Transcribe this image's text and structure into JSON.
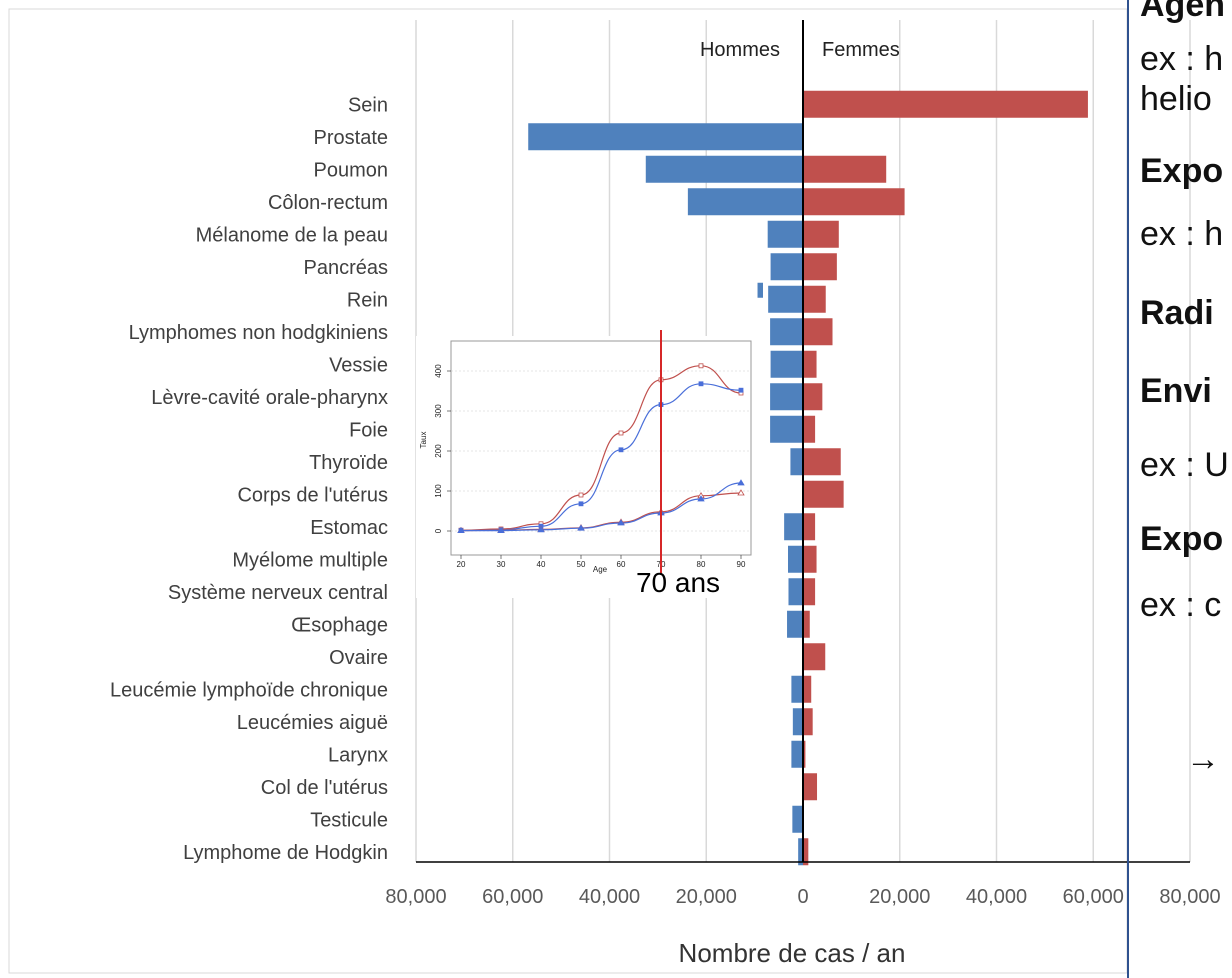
{
  "chart_data": {
    "type": "bar",
    "orientation": "horizontal-butterfly",
    "categories": [
      "Sein",
      "Prostate",
      "Poumon",
      "Côlon-rectum",
      "Mélanome de la peau",
      "Pancréas",
      "Rein",
      "Lymphomes non hodgkiniens",
      "Vessie",
      "Lèvre-cavité orale-pharynx",
      "Foie",
      "Thyroïde",
      "Corps de l'utérus",
      "Estomac",
      "Myélome multiple",
      "Système nerveux central",
      "Œsophage",
      "Ovaire",
      "Leucémie lymphoïde chronique",
      "Leucémies aiguë",
      "Larynx",
      "Col de l'utérus",
      "Testicule",
      "Lymphome de Hodgkin"
    ],
    "series": [
      {
        "name": "Hommes",
        "color": "#4f81bd",
        "values": [
          0,
          56800,
          32500,
          23800,
          7300,
          6700,
          7200,
          6800,
          6700,
          6800,
          6800,
          2600,
          0,
          3900,
          3100,
          3000,
          3300,
          0,
          2400,
          2100,
          2400,
          0,
          2200,
          1000
        ]
      },
      {
        "name": "Femmes",
        "color": "#c0504d",
        "values": [
          58900,
          0,
          17200,
          21000,
          7400,
          7000,
          4700,
          6100,
          2800,
          4000,
          2500,
          7800,
          8400,
          2500,
          2800,
          2500,
          1400,
          4600,
          1700,
          2000,
          500,
          2900,
          0,
          1100
        ]
      }
    ],
    "extra_bar": {
      "category": "Rein",
      "side": "Hommes",
      "value": 9400
    },
    "xlabel": "Nombre de cas / an",
    "xlim": [
      -80000,
      80000
    ],
    "xticks": [
      -80000,
      -60000,
      -40000,
      -20000,
      0,
      20000,
      40000,
      60000,
      80000
    ],
    "xtick_labels": [
      "80,000",
      "60,000",
      "40,000",
      "20,000",
      "0",
      "20,000",
      "40,000",
      "60,000",
      "80,000"
    ],
    "grid": "vertical",
    "side_labels": {
      "left": "Hommes",
      "right": "Femmes"
    }
  },
  "inset": {
    "ylabel": "Taux",
    "xlabel": "Age",
    "x_ticks": [
      20,
      30,
      40,
      50,
      60,
      70,
      80,
      90
    ],
    "y_ticks": [
      0,
      100,
      200,
      300,
      400
    ],
    "series": [
      {
        "color": "#c0504d",
        "marker": "square-open",
        "x": [
          20,
          30,
          40,
          50,
          60,
          70,
          80,
          90
        ],
        "y": [
          2,
          5,
          18,
          90,
          245,
          378,
          413,
          345
        ]
      },
      {
        "color": "#4a6fd9",
        "marker": "square-filled",
        "x": [
          20,
          30,
          40,
          50,
          60,
          70,
          80,
          90
        ],
        "y": [
          1,
          3,
          12,
          68,
          203,
          316,
          368,
          352
        ]
      },
      {
        "color": "#c0504d",
        "marker": "triangle-open",
        "x": [
          20,
          30,
          40,
          50,
          60,
          70,
          80,
          90
        ],
        "y": [
          1,
          2,
          4,
          8,
          22,
          48,
          88,
          95
        ]
      },
      {
        "color": "#4a6fd9",
        "marker": "triangle-filled",
        "x": [
          20,
          30,
          40,
          50,
          60,
          70,
          80,
          90
        ],
        "y": [
          1,
          1,
          3,
          7,
          20,
          45,
          80,
          120
        ]
      }
    ],
    "vline": {
      "x": 70,
      "color": "#d62728"
    },
    "annotation": "70 ans"
  },
  "right_panel": {
    "lines": [
      {
        "text": "Agen",
        "bold": true
      },
      {
        "text": "ex : h",
        "bold": false
      },
      {
        "text": "helio",
        "bold": false
      },
      {
        "text": "Expo",
        "bold": true
      },
      {
        "text": "ex : h",
        "bold": false
      },
      {
        "text": "Radi",
        "bold": true
      },
      {
        "text": "Envi",
        "bold": true
      },
      {
        "text": "ex : U",
        "bold": false
      },
      {
        "text": "Expo",
        "bold": true
      },
      {
        "text": "ex : c",
        "bold": false
      },
      {
        "text": "→",
        "bold": false
      }
    ],
    "divider_color": "#2f528f"
  }
}
